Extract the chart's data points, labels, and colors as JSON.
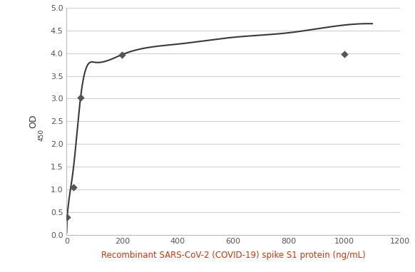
{
  "scatter_x": [
    2,
    25,
    50,
    200,
    1000
  ],
  "scatter_y": [
    0.38,
    1.05,
    3.02,
    3.97,
    3.98
  ],
  "curve_x": [
    0,
    2,
    5,
    10,
    15,
    25,
    50,
    100,
    200,
    400,
    600,
    800,
    1000,
    1100
  ],
  "curve_y": [
    0.05,
    0.38,
    0.6,
    0.85,
    1.05,
    1.5,
    3.02,
    3.8,
    3.97,
    4.2,
    4.35,
    4.45,
    4.62,
    4.65
  ],
  "marker_color": "#555555",
  "line_color": "#3a3a3a",
  "ylabel_line1": "OD",
  "ylabel_sub": "450",
  "xlabel_parts": [
    [
      "Recombinant SARS-CoV-2 (COVID-19) spike S1 protein (ng/mL)",
      "#c8380a"
    ]
  ],
  "ylim": [
    0,
    5
  ],
  "xlim": [
    0,
    1200
  ],
  "yticks": [
    0,
    0.5,
    1,
    1.5,
    2,
    2.5,
    3,
    3.5,
    4,
    4.5,
    5
  ],
  "xticks": [
    0,
    200,
    400,
    600,
    800,
    1000,
    1200
  ],
  "grid_color": "#d0d0d0",
  "background_color": "#ffffff",
  "figure_size": [
    5.82,
    3.82
  ],
  "dpi": 100
}
